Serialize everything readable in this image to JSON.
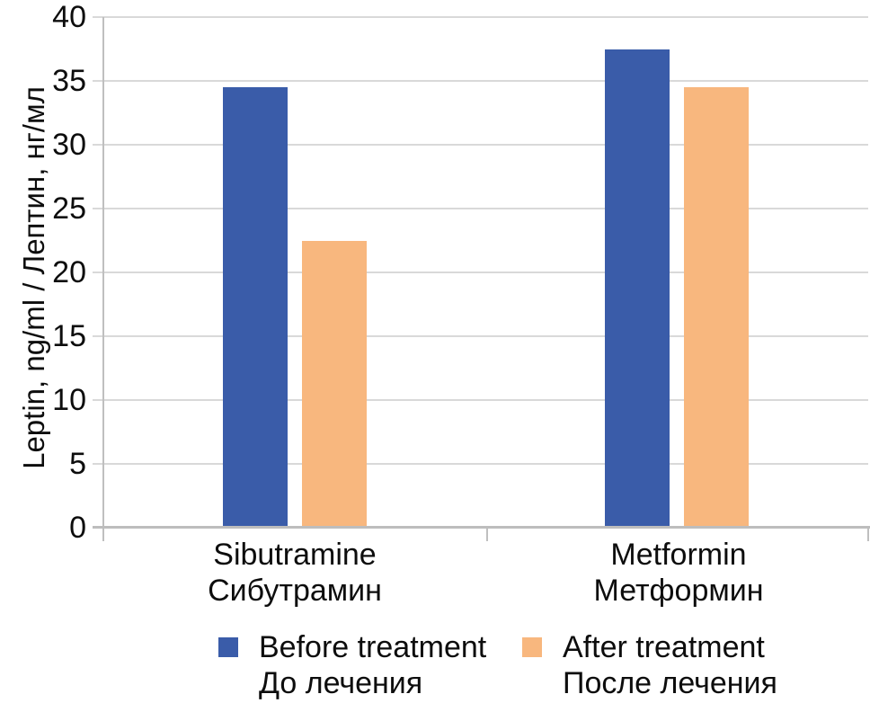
{
  "chart_data": {
    "type": "bar",
    "title": "",
    "ylabel": "Leptin, ng/ml / Лептин, нг/мл",
    "xlabel": "",
    "ylim": [
      0,
      40
    ],
    "yticks": [
      0,
      5,
      10,
      15,
      20,
      25,
      30,
      35,
      40
    ],
    "grid": "horizontal",
    "legend_position": "bottom",
    "categories": [
      [
        "Sibutramine",
        "Сибутрамин"
      ],
      [
        "Metformin",
        "Метформин"
      ]
    ],
    "series": [
      {
        "name": [
          "Before treatment",
          "До лечения"
        ],
        "color": "#3a5ca9",
        "values": [
          34.5,
          37.5
        ]
      },
      {
        "name": [
          "After treatment",
          "После лечения"
        ],
        "color": "#f8b77e",
        "values": [
          22.5,
          34.5
        ]
      }
    ]
  },
  "colors": {
    "gridline": "#d9d9d9",
    "axis": "#bfbfbf",
    "text": "#0d0d0d",
    "background": "#ffffff"
  }
}
